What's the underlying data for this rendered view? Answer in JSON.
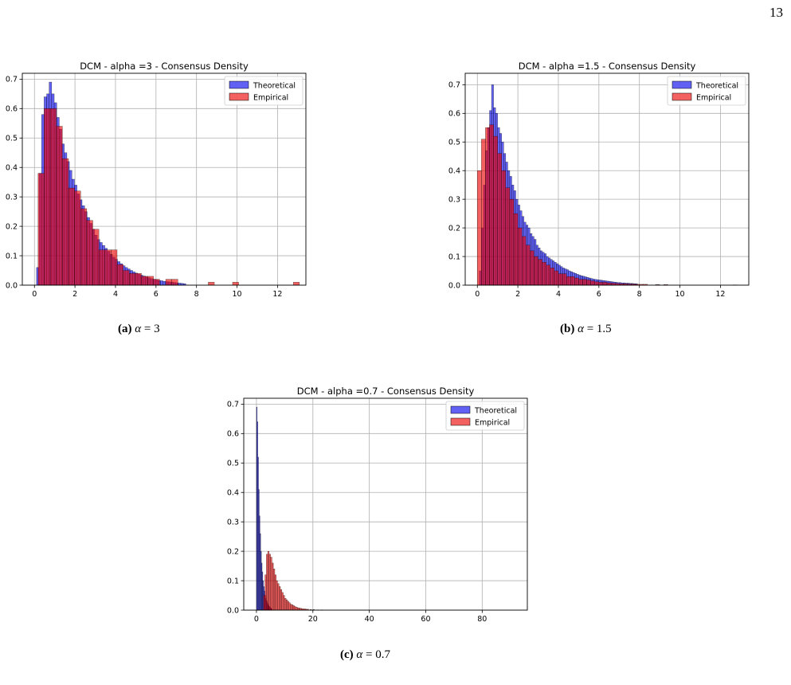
{
  "page_number": "13",
  "figures": [
    {
      "caption_tag": "(a)",
      "caption_math": "α",
      "caption_rest": " = 3",
      "chart_data": {
        "type": "bar",
        "title": "DCM - alpha =3 - Consensus Density",
        "xlim": [
          -0.6,
          13.4
        ],
        "ylim": [
          0,
          0.72
        ],
        "xticks": [
          0,
          2,
          4,
          6,
          8,
          10,
          12
        ],
        "yticks": [
          0.0,
          0.1,
          0.2,
          0.3,
          0.4,
          0.5,
          0.6,
          0.7
        ],
        "grid": true,
        "legend_position": "top-right",
        "series": [
          {
            "name": "Theoretical",
            "color": "#0000ee",
            "bin_start": 0.1,
            "bin_width": 0.125,
            "values": [
              0.06,
              0.38,
              0.58,
              0.64,
              0.65,
              0.69,
              0.65,
              0.62,
              0.57,
              0.53,
              0.48,
              0.45,
              0.42,
              0.39,
              0.36,
              0.34,
              0.31,
              0.29,
              0.27,
              0.25,
              0.23,
              0.21,
              0.19,
              0.17,
              0.155,
              0.145,
              0.135,
              0.125,
              0.115,
              0.105,
              0.095,
              0.088,
              0.08,
              0.073,
              0.066,
              0.06,
              0.055,
              0.05,
              0.045,
              0.041,
              0.037,
              0.034,
              0.031,
              0.028,
              0.025,
              0.022,
              0.02,
              0.018,
              0.016,
              0.015,
              0.013,
              0.012,
              0.011,
              0.01,
              0.009,
              0.008,
              0.007,
              0.006,
              0.005
            ]
          },
          {
            "name": "Empirical",
            "color": "#ee0000",
            "bin_start": 0.18,
            "bin_width": 0.3,
            "values": [
              0.38,
              0.6,
              0.6,
              0.54,
              0.43,
              0.33,
              0.32,
              0.26,
              0.22,
              0.19,
              0.12,
              0.12,
              0.12,
              0.07,
              0.05,
              0.04,
              0.04,
              0.03,
              0.03,
              0.02,
              0.0,
              0.02,
              0.02,
              0.0,
              0.0,
              0.0,
              0.0,
              0.0,
              0.01,
              0.0,
              0.0,
              0.0,
              0.01,
              0.0,
              0.0,
              0.0,
              0.0,
              0.0,
              0.0,
              0.0,
              0.0,
              0.0,
              0.01
            ]
          }
        ]
      }
    },
    {
      "caption_tag": "(b)",
      "caption_math": "α",
      "caption_rest": " = 1.5",
      "chart_data": {
        "type": "bar",
        "title": "DCM - alpha =1.5 - Consensus Density",
        "xlim": [
          -0.6,
          13.4
        ],
        "ylim": [
          0,
          0.74
        ],
        "xticks": [
          0,
          2,
          4,
          6,
          8,
          10,
          12
        ],
        "yticks": [
          0.0,
          0.1,
          0.2,
          0.3,
          0.4,
          0.5,
          0.6,
          0.7
        ],
        "grid": true,
        "legend_position": "top-right",
        "series": [
          {
            "name": "Theoretical",
            "color": "#0000ee",
            "bin_start": 0.1,
            "bin_width": 0.1,
            "values": [
              0.05,
              0.2,
              0.35,
              0.47,
              0.55,
              0.61,
              0.7,
              0.62,
              0.6,
              0.55,
              0.53,
              0.5,
              0.46,
              0.43,
              0.4,
              0.38,
              0.35,
              0.33,
              0.3,
              0.28,
              0.26,
              0.24,
              0.22,
              0.21,
              0.2,
              0.18,
              0.17,
              0.16,
              0.14,
              0.13,
              0.12,
              0.115,
              0.11,
              0.1,
              0.095,
              0.09,
              0.085,
              0.08,
              0.075,
              0.07,
              0.065,
              0.06,
              0.057,
              0.054,
              0.05,
              0.047,
              0.044,
              0.041,
              0.038,
              0.035,
              0.033,
              0.031,
              0.029,
              0.027,
              0.025,
              0.023,
              0.021,
              0.02,
              0.019,
              0.018,
              0.017,
              0.016,
              0.015,
              0.014,
              0.013,
              0.012,
              0.011,
              0.01,
              0.009,
              0.009,
              0.008,
              0.008,
              0.007,
              0.007,
              0.006,
              0.006,
              0.005,
              0.005
            ]
          },
          {
            "name": "Empirical",
            "color": "#ee0000",
            "bin_start": 0.0,
            "bin_width": 0.2,
            "values": [
              0.4,
              0.51,
              0.55,
              0.56,
              0.52,
              0.46,
              0.4,
              0.34,
              0.3,
              0.25,
              0.2,
              0.17,
              0.14,
              0.12,
              0.1,
              0.09,
              0.08,
              0.07,
              0.06,
              0.05,
              0.04,
              0.04,
              0.03,
              0.03,
              0.025,
              0.02,
              0.02,
              0.018,
              0.015,
              0.012,
              0.01,
              0.01,
              0.008,
              0.007,
              0.006,
              0.005,
              0.005,
              0.004,
              0.004,
              0.003,
              0.003,
              0.003,
              0.0,
              0.0,
              0.002,
              0.0,
              0.002,
              0.0,
              0.0,
              0.0,
              0.0,
              0.0,
              0.0,
              0.0,
              0.0,
              0.0,
              0.0,
              0.0,
              0.0,
              0.0,
              0.0,
              0.0,
              0.0,
              0.001
            ]
          }
        ]
      }
    },
    {
      "caption_tag": "(c)",
      "caption_math": "α",
      "caption_rest": " = 0.7",
      "chart_data": {
        "type": "bar",
        "title": "DCM - alpha =0.7 - Consensus Density",
        "xlim": [
          -4.5,
          96
        ],
        "ylim": [
          0,
          0.72
        ],
        "xticks": [
          0,
          20,
          40,
          60,
          80
        ],
        "yticks": [
          0.0,
          0.1,
          0.2,
          0.3,
          0.4,
          0.5,
          0.6,
          0.7
        ],
        "grid": true,
        "legend_position": "top-right",
        "series": [
          {
            "name": "Theoretical",
            "color": "#0000ee",
            "bin_start": 0.0,
            "bin_width": 0.25,
            "values": [
              0.69,
              0.64,
              0.52,
              0.41,
              0.32,
              0.26,
              0.2,
              0.16,
              0.13,
              0.1,
              0.08,
              0.065,
              0.05,
              0.04,
              0.032,
              0.025,
              0.02,
              0.015,
              0.012,
              0.009,
              0.007,
              0.005
            ]
          },
          {
            "name": "Empirical",
            "color": "#ee0000",
            "bin_start": 2.5,
            "bin_width": 0.5,
            "values": [
              0.05,
              0.12,
              0.19,
              0.2,
              0.19,
              0.18,
              0.16,
              0.14,
              0.12,
              0.1,
              0.09,
              0.08,
              0.07,
              0.06,
              0.05,
              0.04,
              0.035,
              0.03,
              0.025,
              0.02,
              0.018,
              0.015,
              0.012,
              0.01,
              0.008,
              0.007,
              0.006,
              0.005,
              0.004,
              0.004,
              0.003,
              0.003,
              0.0,
              0.002,
              0.0,
              0.002,
              0.0,
              0.0,
              0.001,
              0.0,
              0.0,
              0.001
            ]
          }
        ]
      }
    }
  ]
}
